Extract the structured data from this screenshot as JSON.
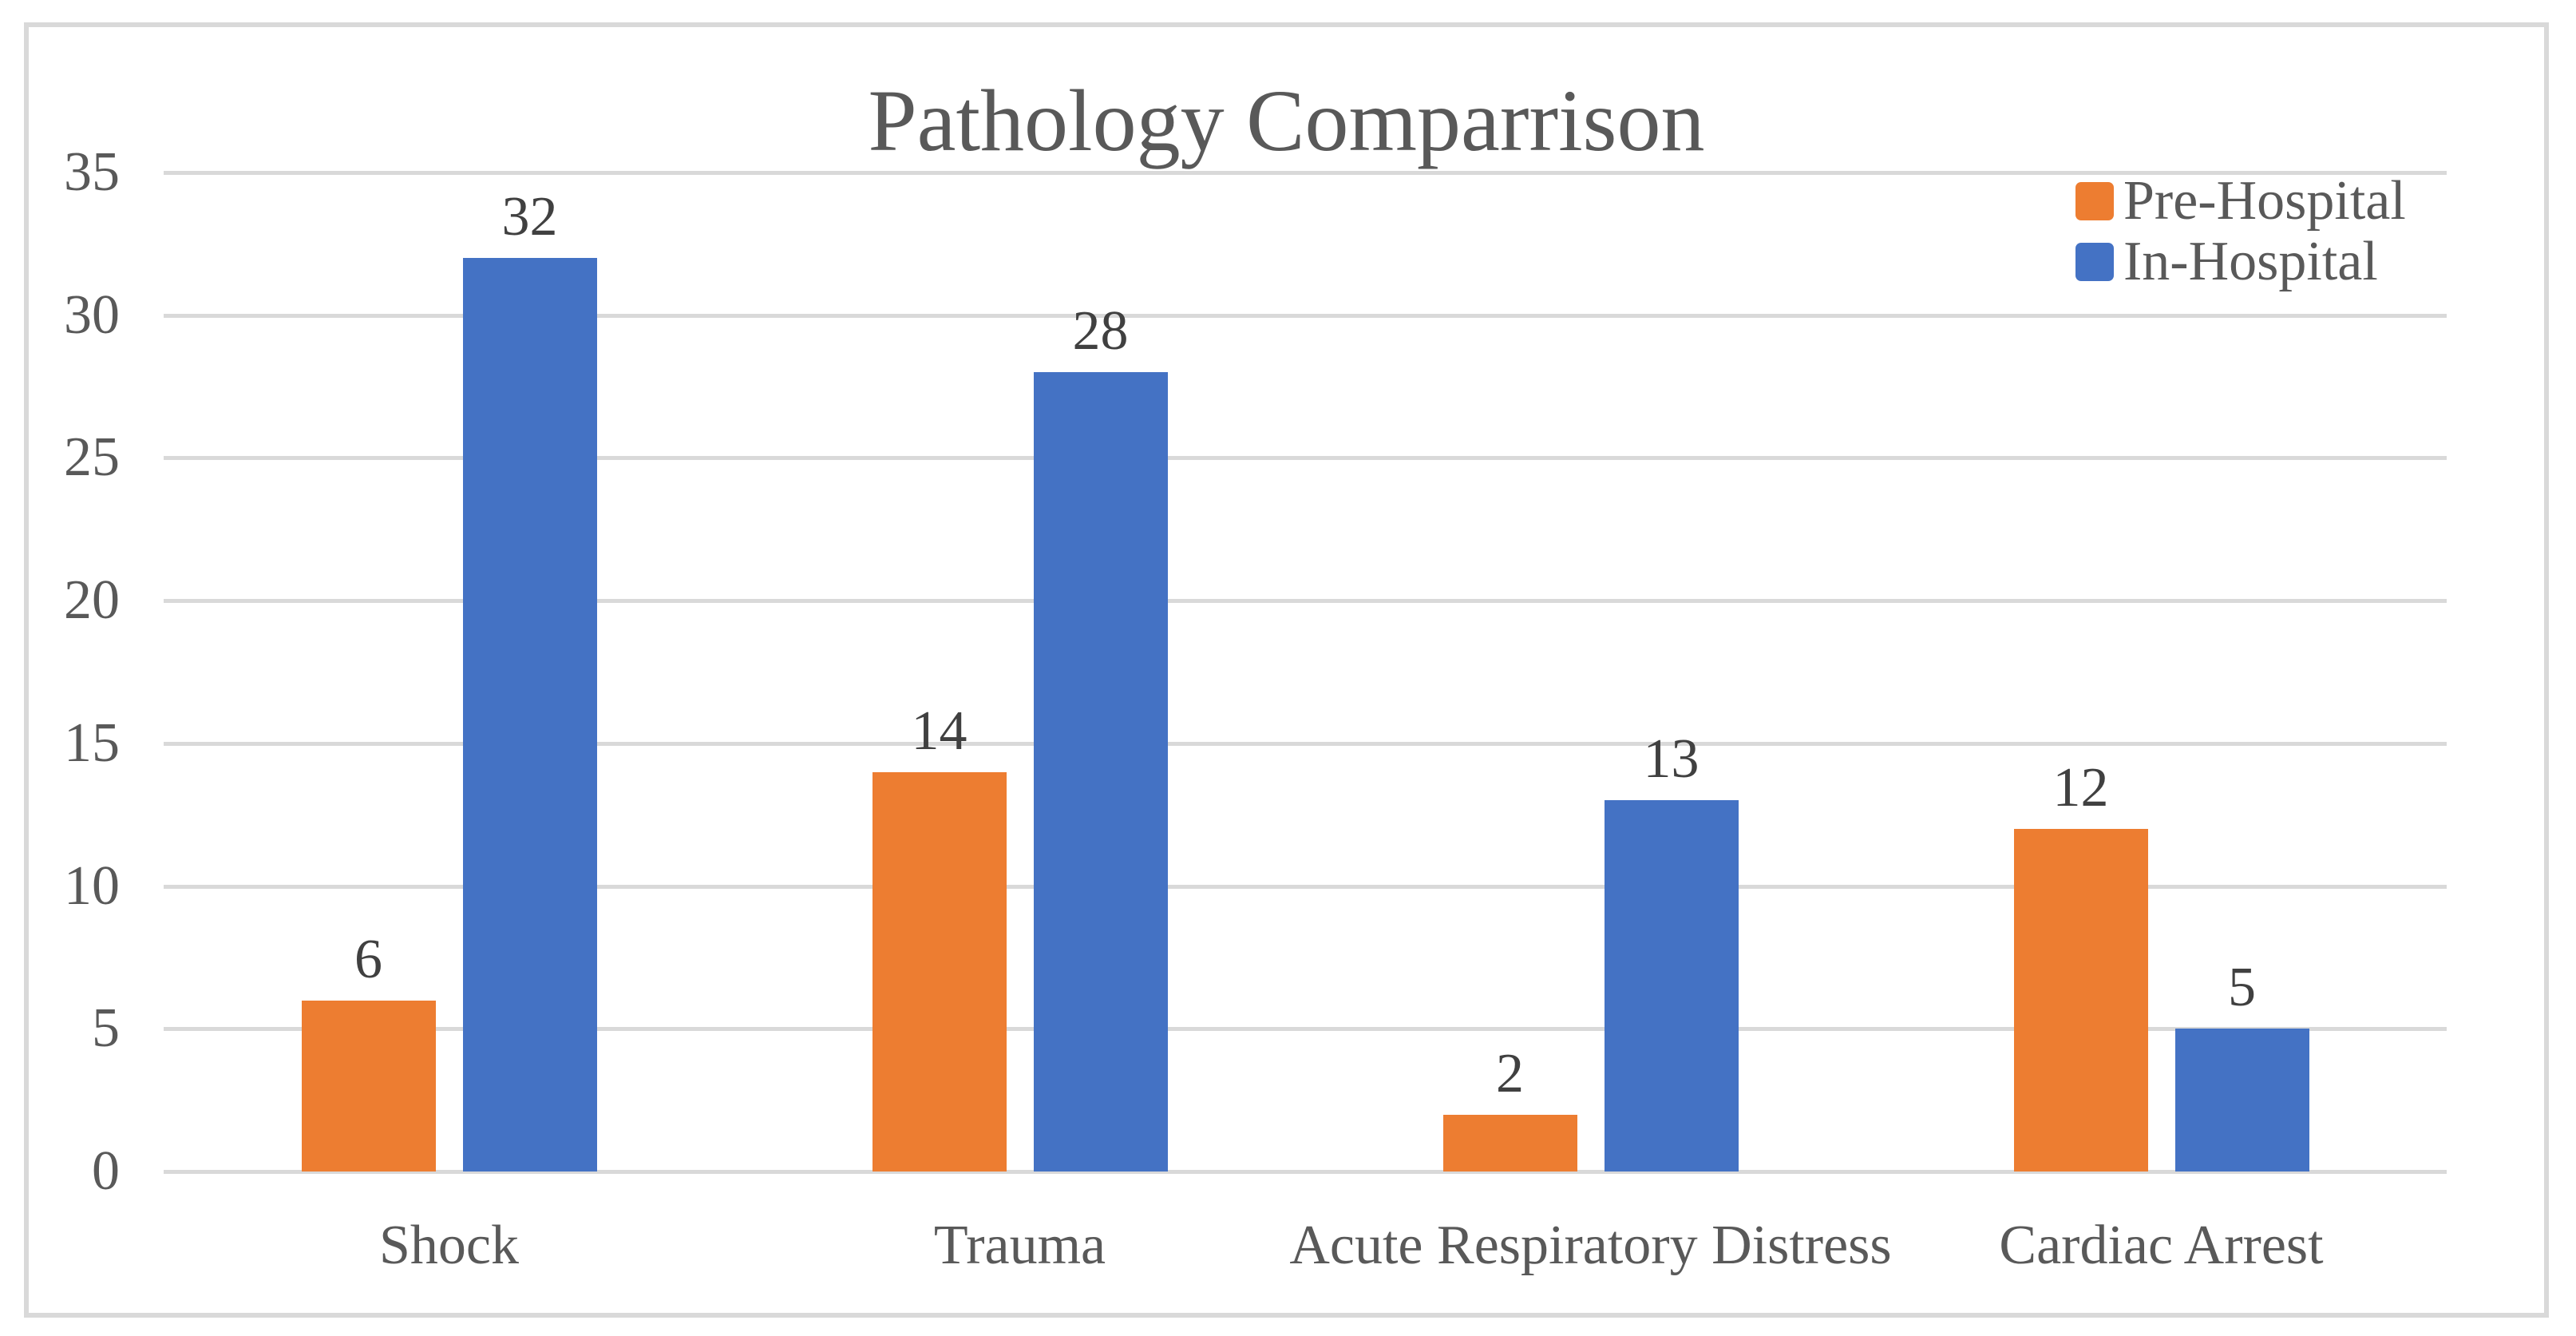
{
  "title": "Pathology Comparrison",
  "legend": {
    "position": "top-right",
    "items": [
      {
        "label": "Pre-Hospital",
        "color": "#ED7D31"
      },
      {
        "label": "In-Hospital",
        "color": "#4472C4"
      }
    ]
  },
  "chart_data": {
    "type": "bar",
    "title": "Pathology Comparrison",
    "categories": [
      "Shock",
      "Trauma",
      "Acute Respiratory Distress",
      "Cardiac Arrest"
    ],
    "series": [
      {
        "name": "Pre-Hospital",
        "color": "#ED7D31",
        "values": [
          6,
          14,
          2,
          12
        ]
      },
      {
        "name": "In-Hospital",
        "color": "#4472C4",
        "values": [
          32,
          28,
          13,
          5
        ]
      }
    ],
    "xlabel": "",
    "ylabel": "",
    "ylim": [
      0,
      35
    ],
    "yticks": [
      0,
      5,
      10,
      15,
      20,
      25,
      30,
      35
    ],
    "grid": true,
    "data_labels": true,
    "legend_position": "top-right"
  },
  "colors": {
    "background": "#FFFFFF",
    "frame_border": "#D9D9D9",
    "gridline": "#D9D9D9",
    "axis_text": "#595959",
    "title_text": "#595959",
    "data_label_text": "#404040"
  }
}
